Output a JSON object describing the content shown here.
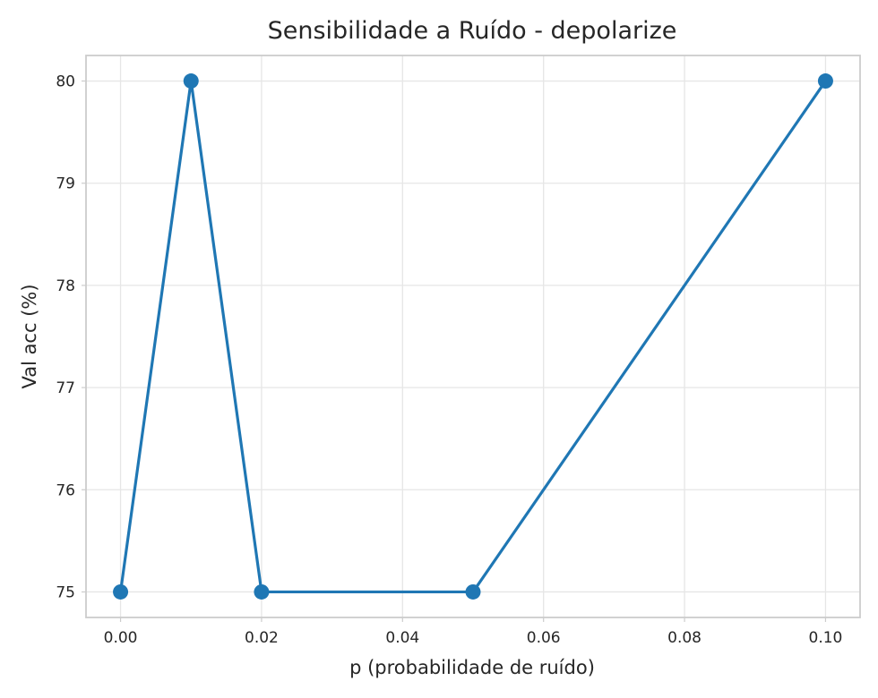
{
  "chart_data": {
    "type": "line",
    "title": "Sensibilidade a Ruído - depolarize",
    "xlabel": "p (probabilidade de ruído)",
    "ylabel": "Val acc (%)",
    "x_ticks": [
      0.0,
      0.02,
      0.04,
      0.06,
      0.08,
      0.1
    ],
    "x_tick_labels": [
      "0.00",
      "0.02",
      "0.04",
      "0.06",
      "0.08",
      "0.10"
    ],
    "y_ticks": [
      75,
      76,
      77,
      78,
      79,
      80
    ],
    "y_tick_labels": [
      "75",
      "76",
      "77",
      "78",
      "79",
      "80"
    ],
    "xlim": [
      -0.0049,
      0.1049
    ],
    "ylim": [
      74.75,
      80.25
    ],
    "grid": true,
    "legend": "none",
    "series": [
      {
        "color": "#1f77b4",
        "marker": "circle",
        "points": [
          {
            "x": 0.0,
            "y": 75
          },
          {
            "x": 0.01,
            "y": 80
          },
          {
            "x": 0.02,
            "y": 75
          },
          {
            "x": 0.05,
            "y": 75
          },
          {
            "x": 0.1,
            "y": 80
          }
        ]
      }
    ]
  }
}
